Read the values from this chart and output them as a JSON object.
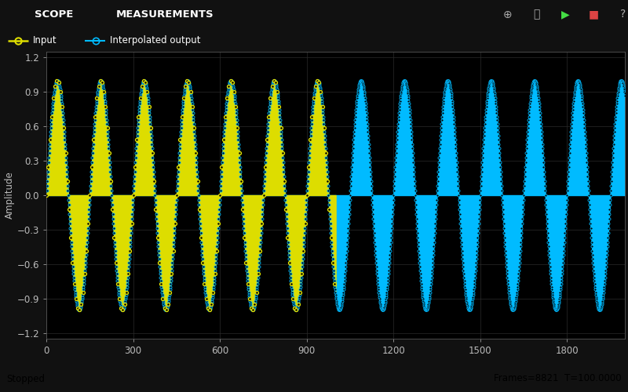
{
  "fig_bg": "#111111",
  "header_color": "#1b3a5c",
  "legend_bg": "#1a1a1a",
  "plot_bg": "#000000",
  "footer_bg": "#b8b8b8",
  "input_color": "#dddd00",
  "output_color": "#00bbff",
  "grid_color": "#2a2a2a",
  "tick_color": "#bbbbbb",
  "spine_color": "#555555",
  "ylabel": "Amplitude",
  "xlabel_ticks": [
    0,
    300,
    600,
    900,
    1200,
    1500,
    1800
  ],
  "yticks": [
    -1.2,
    -0.9,
    -0.6,
    -0.3,
    0.0,
    0.3,
    0.6,
    0.9,
    1.2
  ],
  "xlim": [
    0,
    2000
  ],
  "ylim": [
    -1.25,
    1.25
  ],
  "header_text_left": "SCOPE",
  "header_text_mid": "MEASUREMENTS",
  "legend_input": "Input",
  "legend_output": "Interpolated output",
  "footer_left": "Stopped",
  "footer_right": "Frames=8821  T=100.0000",
  "legend_fontsize": 8.5,
  "tick_fontsize": 8.5,
  "ylabel_fontsize": 8.5,
  "header_fontsize": 9.5,
  "signal_period": 150,
  "input_sample_step": 6,
  "output_sample_step_1": 1,
  "output_sample_step_2": 1,
  "transition_x": 1000,
  "x_end": 2000,
  "marker_size_output": 5,
  "marker_size_input": 8,
  "marker_lw_output": 0.6,
  "marker_lw_input": 1.0
}
